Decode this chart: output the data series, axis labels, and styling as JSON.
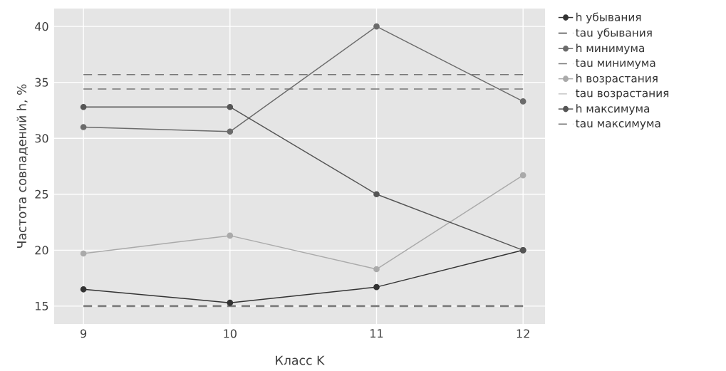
{
  "chart_data": {
    "type": "line",
    "xlabel": "Класс K",
    "ylabel": "Частота совпадений h, %",
    "x": [
      9,
      10,
      11,
      12
    ],
    "series": [
      {
        "name": "h убывания",
        "color": "#333333",
        "values": [
          16.5,
          15.3,
          16.7,
          20.0
        ],
        "marker": "circle",
        "line_style": "solid"
      },
      {
        "name": "tau убывания",
        "color": "#444444",
        "values": [
          15.0,
          15.0,
          15.0,
          15.0
        ],
        "marker": "none",
        "line_style": "dashed"
      },
      {
        "name": "h минимума",
        "color": "#6b6b6b",
        "values": [
          31.0,
          30.6,
          40.0,
          33.3
        ],
        "marker": "circle",
        "line_style": "solid"
      },
      {
        "name": "tau минимума",
        "color": "#777777",
        "values": [
          34.4,
          34.4,
          34.4,
          34.4
        ],
        "marker": "none",
        "line_style": "dashed"
      },
      {
        "name": "h возрастания",
        "color": "#aaaaaa",
        "values": [
          19.7,
          21.3,
          18.3,
          26.7
        ],
        "marker": "circle",
        "line_style": "solid"
      },
      {
        "name": "tau возрастания",
        "color": "#bbbbbb",
        "values": [
          15.0,
          15.0,
          15.0,
          15.0
        ],
        "marker": "none",
        "line_style": "dashed"
      },
      {
        "name": "h максимума",
        "color": "#555555",
        "values": [
          32.8,
          32.8,
          25.0,
          20.0
        ],
        "marker": "circle",
        "line_style": "solid"
      },
      {
        "name": "tau максимума",
        "color": "#777777",
        "values": [
          35.7,
          35.7,
          35.7,
          35.7
        ],
        "marker": "none",
        "line_style": "dashed"
      }
    ],
    "xlim": [
      8.8,
      12.15
    ],
    "ylim": [
      13.4,
      41.6
    ],
    "xticks": [
      9,
      10,
      11,
      12
    ],
    "yticks": [
      15,
      20,
      25,
      30,
      35,
      40
    ],
    "grid": true,
    "legend": "top right"
  }
}
